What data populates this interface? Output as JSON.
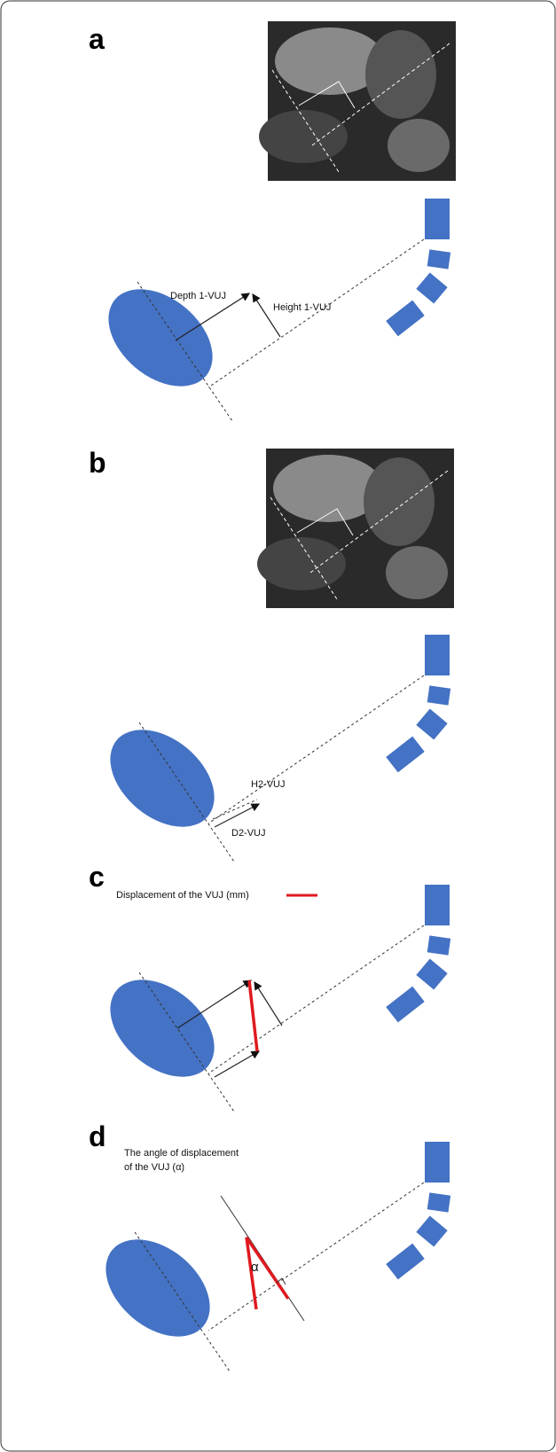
{
  "panels": [
    {
      "label": "a",
      "labels": [
        "Depth 1-VUJ",
        "Height 1-VUJ"
      ]
    },
    {
      "label": "b",
      "labels": [
        "H2-VUJ",
        "D2-VUJ"
      ]
    },
    {
      "label": "c",
      "legend": "Displacement of the VUJ (mm)"
    },
    {
      "label": "d",
      "caption": [
        "The angle of displacement",
        "of the VUJ (α)"
      ],
      "angle_symbol": "α"
    }
  ]
}
